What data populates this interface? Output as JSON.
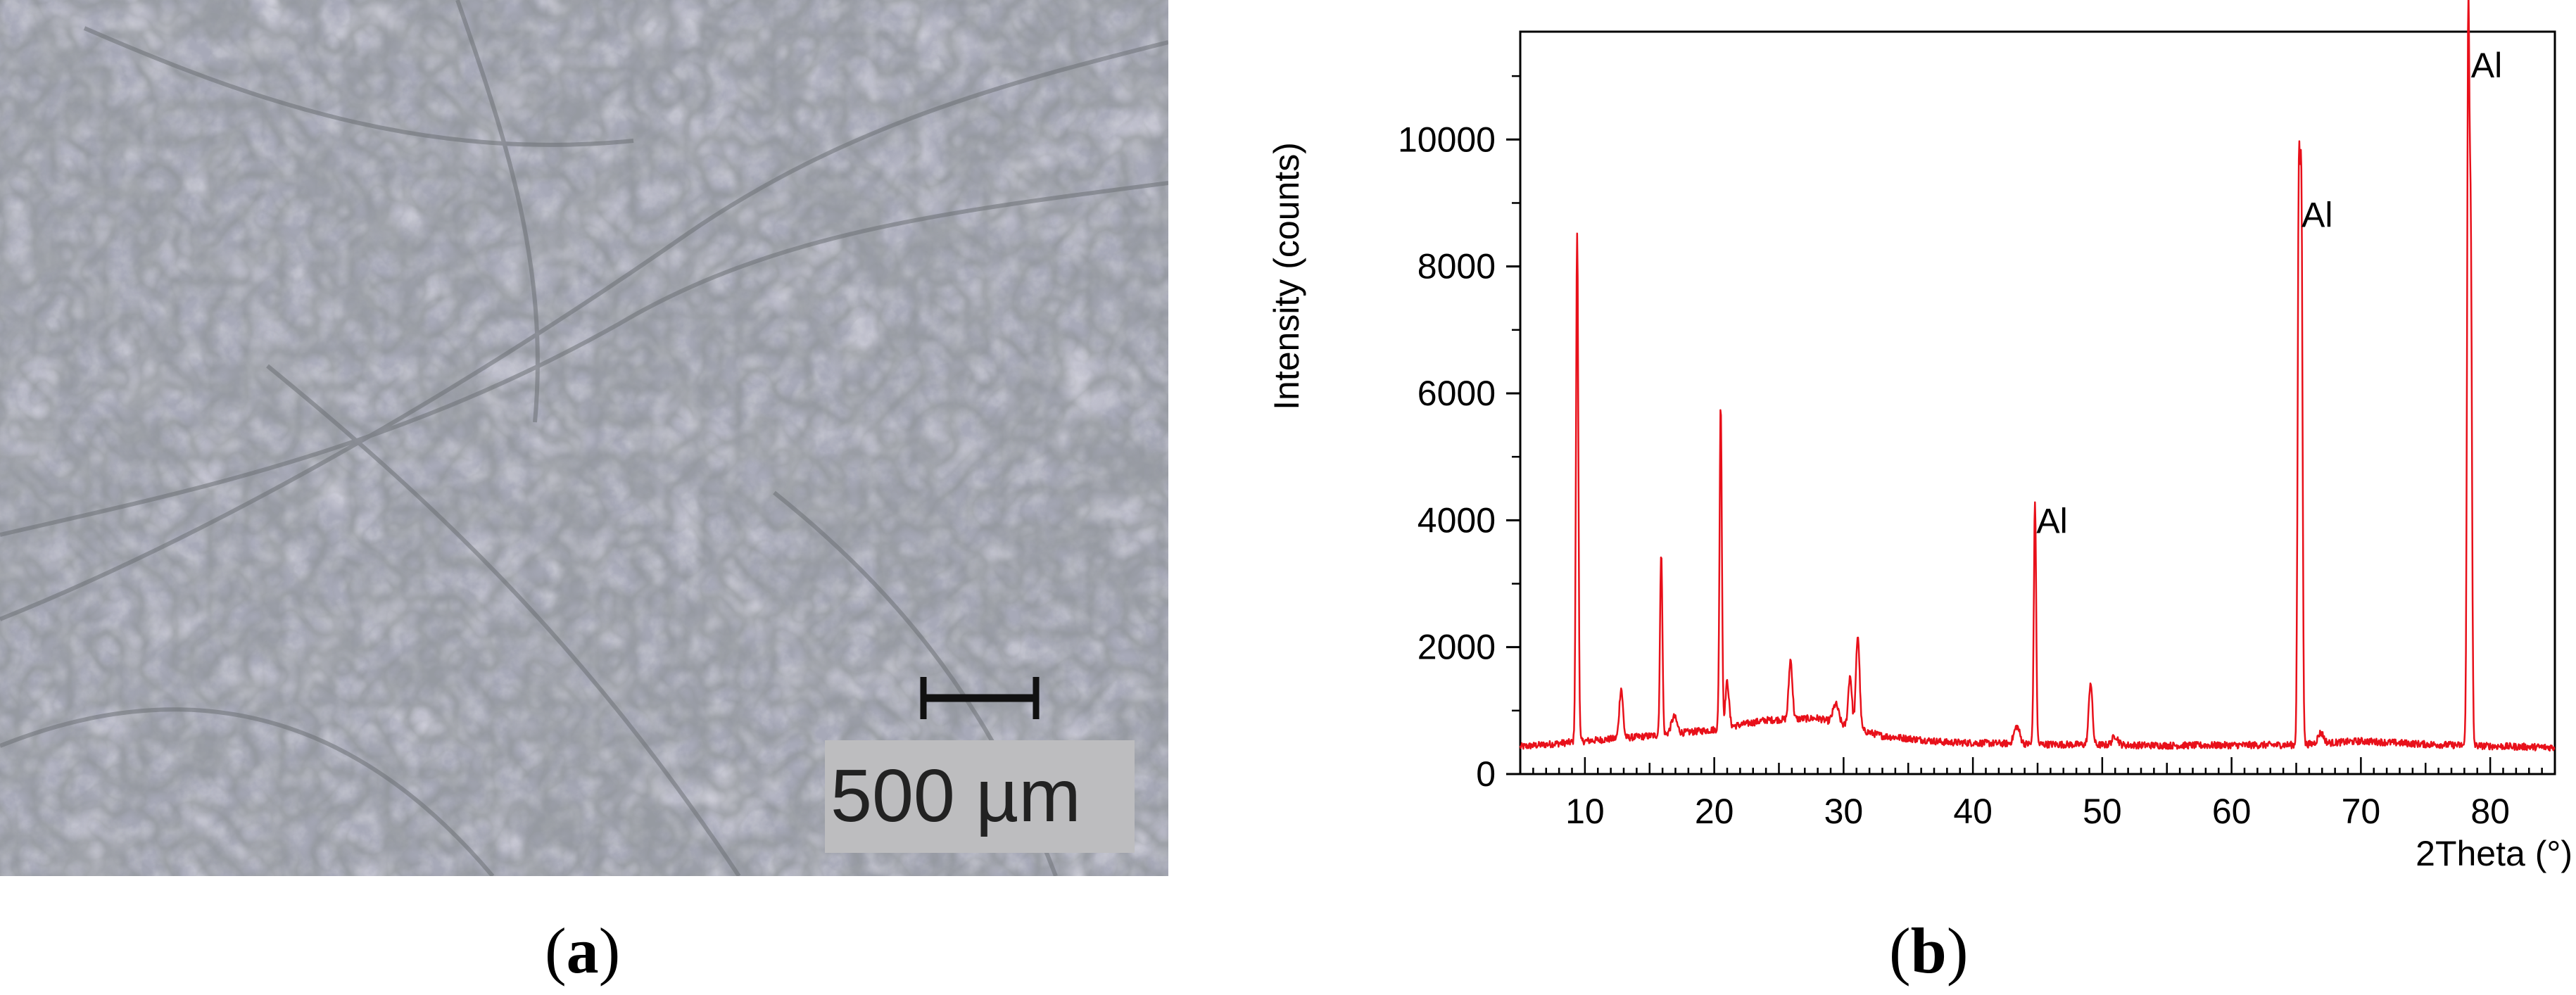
{
  "panel_a": {
    "scale_bar_label": "500 µm"
  },
  "panel_b": {},
  "captions": {
    "a": {
      "open": "(",
      "letter": "a",
      "close": ")"
    },
    "b": {
      "open": "(",
      "letter": "b",
      "close": ")"
    }
  },
  "colors": {
    "trace": "#e8101a",
    "axis": "#000000",
    "micrograph_base": "#a7a9b8"
  },
  "chart_data": {
    "type": "line",
    "title": "",
    "xlabel": "2Theta (°)",
    "ylabel": "Intensity (counts)",
    "xlim": [
      5,
      85
    ],
    "ylim": [
      0,
      11700
    ],
    "x_ticks": [
      10,
      20,
      30,
      40,
      50,
      60,
      70,
      80
    ],
    "y_ticks": [
      0,
      2000,
      4000,
      6000,
      8000,
      10000
    ],
    "grid": false,
    "legend": "none",
    "peaks": [
      {
        "x": 9.4,
        "y": 8550
      },
      {
        "x": 12.8,
        "y": 1350
      },
      {
        "x": 15.9,
        "y": 3520
      },
      {
        "x": 16.9,
        "y": 900
      },
      {
        "x": 20.5,
        "y": 5830
      },
      {
        "x": 21.0,
        "y": 1450
      },
      {
        "x": 25.9,
        "y": 1800
      },
      {
        "x": 29.4,
        "y": 1100
      },
      {
        "x": 30.5,
        "y": 1550
      },
      {
        "x": 31.1,
        "y": 2180
      },
      {
        "x": 43.4,
        "y": 750
      },
      {
        "x": 44.8,
        "y": 4300
      },
      {
        "x": 49.1,
        "y": 1450
      },
      {
        "x": 51.0,
        "y": 600
      },
      {
        "x": 65.2,
        "y": 9000
      },
      {
        "x": 65.4,
        "y": 8850
      },
      {
        "x": 66.9,
        "y": 650
      },
      {
        "x": 78.3,
        "y": 11600
      },
      {
        "x": 78.5,
        "y": 8000
      }
    ],
    "background": [
      {
        "x": 5,
        "y": 430
      },
      {
        "x": 10,
        "y": 520
      },
      {
        "x": 15,
        "y": 600
      },
      {
        "x": 20,
        "y": 700
      },
      {
        "x": 24,
        "y": 850
      },
      {
        "x": 28,
        "y": 880
      },
      {
        "x": 33,
        "y": 600
      },
      {
        "x": 38,
        "y": 500
      },
      {
        "x": 45,
        "y": 470
      },
      {
        "x": 55,
        "y": 450
      },
      {
        "x": 65,
        "y": 460
      },
      {
        "x": 70,
        "y": 520
      },
      {
        "x": 75,
        "y": 470
      },
      {
        "x": 80,
        "y": 440
      },
      {
        "x": 85,
        "y": 420
      }
    ],
    "annotations": [
      {
        "text": "Al",
        "x": 44.8,
        "y": 4000
      },
      {
        "text": "Al",
        "x": 65.3,
        "y": 8820
      },
      {
        "text": "Al",
        "x": 78.4,
        "y": 11180
      }
    ]
  }
}
